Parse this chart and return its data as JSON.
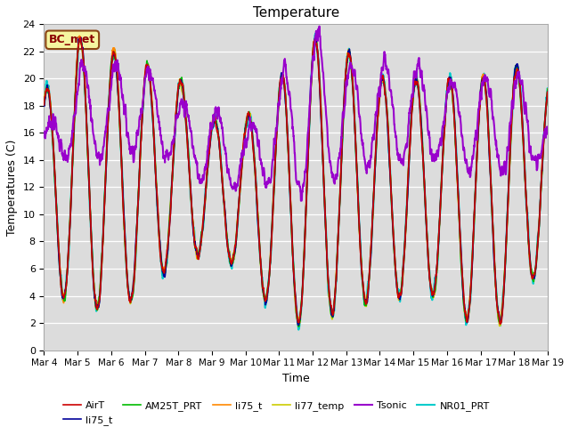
{
  "title": "Temperature",
  "xlabel": "Time",
  "ylabel": "Temperatures (C)",
  "ylim": [
    0,
    24
  ],
  "xlim": [
    0,
    15
  ],
  "x_tick_labels": [
    "Mar 4",
    "Mar 5",
    "Mar 6",
    "Mar 7",
    "Mar 8",
    "Mar 9",
    "Mar 10",
    "Mar 11",
    "Mar 12",
    "Mar 13",
    "Mar 14",
    "Mar 15",
    "Mar 16",
    "Mar 17",
    "Mar 18",
    "Mar 19"
  ],
  "annotation_text": "BC_met",
  "annotation_box_color": "#f5f5a0",
  "annotation_box_edge": "#8B4513",
  "background_color": "#dcdcdc",
  "legend_labels": [
    "AirT",
    "li75_t",
    "AM25T_PRT",
    "li75_t",
    "li77_temp",
    "Tsonic",
    "NR01_PRT"
  ],
  "legend_colors": [
    "#cc0000",
    "#000099",
    "#00bb00",
    "#ff8800",
    "#cccc00",
    "#9900cc",
    "#00cccc"
  ],
  "legend_lws": [
    1.2,
    1.2,
    1.2,
    1.2,
    1.2,
    1.5,
    1.5
  ]
}
